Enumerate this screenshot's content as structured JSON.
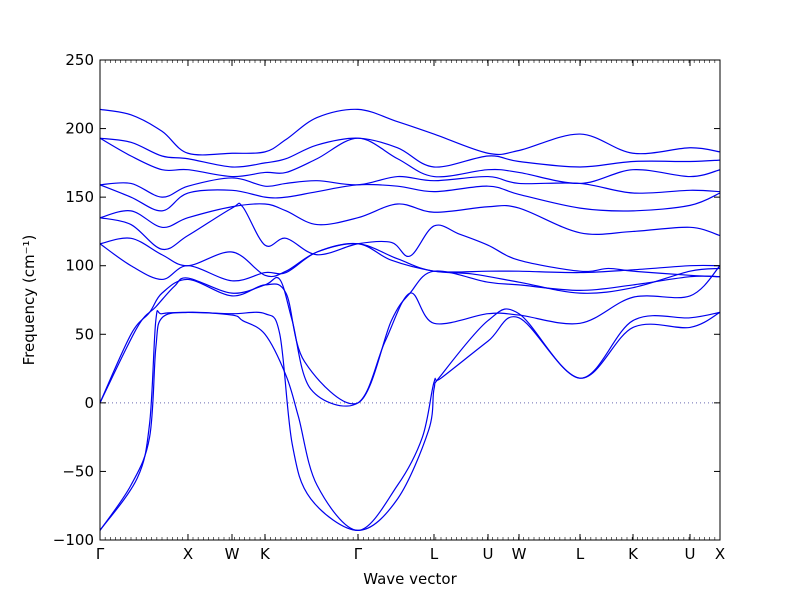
{
  "chart_data": {
    "type": "line",
    "xlabel": "Wave vector",
    "ylabel": "Frequency (cm⁻¹)",
    "ylim": [
      -100,
      250
    ],
    "yticks": [
      -100,
      -50,
      0,
      50,
      100,
      150,
      200,
      250
    ],
    "grid": false,
    "legend": "none",
    "zero_line": true,
    "line_color": "#0000ee",
    "zero_line_color": "#6a6ab0",
    "xlim": [
      0,
      1
    ],
    "x_ticks": [
      {
        "label": "Γ",
        "pos": 0.0
      },
      {
        "label": "X",
        "pos": 0.1419
      },
      {
        "label": "W",
        "pos": 0.2129
      },
      {
        "label": "K",
        "pos": 0.2661
      },
      {
        "label": "Γ",
        "pos": 0.4161
      },
      {
        "label": "L",
        "pos": 0.5387
      },
      {
        "label": "U",
        "pos": 0.6258
      },
      {
        "label": "W",
        "pos": 0.6758
      },
      {
        "label": "L",
        "pos": 0.7742
      },
      {
        "label": "K",
        "pos": 0.8597
      },
      {
        "label": "U",
        "pos": 0.9516
      },
      {
        "label": "X",
        "pos": 1.0
      }
    ],
    "series": [
      {
        "x": [
          0,
          0.05,
          0.08,
          0.09,
          0.1,
          0.1419,
          0.2129,
          0.23,
          0.2661,
          0.3,
          0.32,
          0.35,
          0.4161,
          0.48,
          0.52,
          0.5387,
          0.55,
          0.6258,
          0.6758,
          0.7742,
          0.8597,
          0.9516,
          1.0
        ],
        "y": [
          -93,
          -60,
          -25,
          40,
          62,
          66,
          64,
          60,
          50,
          20,
          -10,
          -60,
          -93,
          -60,
          -25,
          15,
          18,
          45,
          62,
          18,
          55,
          55,
          66
        ]
      },
      {
        "x": [
          0,
          0.06,
          0.08,
          0.09,
          0.1,
          0.1419,
          0.2129,
          0.2661,
          0.29,
          0.31,
          0.34,
          0.4161,
          0.48,
          0.53,
          0.5387,
          0.55,
          0.6258,
          0.6758,
          0.7742,
          0.8597,
          0.9516,
          1.0
        ],
        "y": [
          -93,
          -55,
          -15,
          60,
          65,
          66,
          65,
          65,
          50,
          -30,
          -70,
          -93,
          -70,
          -20,
          10,
          20,
          60,
          65,
          18,
          60,
          62,
          66
        ]
      },
      {
        "x": [
          0,
          0.05,
          0.08,
          0.1,
          0.1419,
          0.2129,
          0.2661,
          0.3,
          0.33,
          0.4161,
          0.47,
          0.5,
          0.5387,
          0.6258,
          0.6758,
          0.7742,
          0.8597,
          0.9516,
          1.0
        ],
        "y": [
          0,
          50,
          66,
          80,
          90,
          78,
          86,
          80,
          30,
          0,
          60,
          80,
          96,
          88,
          86,
          82,
          86,
          92,
          92
        ]
      },
      {
        "x": [
          0,
          0.06,
          0.09,
          0.12,
          0.1419,
          0.2129,
          0.2661,
          0.29,
          0.31,
          0.34,
          0.4161,
          0.46,
          0.5,
          0.5387,
          0.6258,
          0.6758,
          0.7742,
          0.8597,
          0.9516,
          1.0
        ],
        "y": [
          0,
          55,
          70,
          85,
          91,
          80,
          86,
          90,
          60,
          10,
          0,
          45,
          80,
          58,
          65,
          64,
          58,
          77,
          78,
          100
        ]
      },
      {
        "x": [
          0,
          0.05,
          0.1,
          0.1419,
          0.2129,
          0.2661,
          0.3,
          0.35,
          0.4161,
          0.47,
          0.5387,
          0.6,
          0.6758,
          0.7742,
          0.8597,
          0.9516,
          1.0
        ],
        "y": [
          116,
          100,
          90,
          100,
          89,
          95,
          95,
          110,
          116,
          104,
          96,
          94,
          88,
          80,
          84,
          96,
          98
        ]
      },
      {
        "x": [
          0,
          0.05,
          0.1,
          0.1419,
          0.2129,
          0.2661,
          0.3,
          0.35,
          0.4161,
          0.48,
          0.5387,
          0.6258,
          0.6758,
          0.7742,
          0.8597,
          0.9516,
          1.0
        ],
        "y": [
          116,
          120,
          108,
          100,
          110,
          93,
          96,
          110,
          116,
          105,
          96,
          96,
          96,
          95,
          97,
          100,
          100
        ]
      },
      {
        "x": [
          0,
          0.05,
          0.1,
          0.1419,
          0.2129,
          0.23,
          0.2661,
          0.3,
          0.35,
          0.4161,
          0.47,
          0.5,
          0.5387,
          0.58,
          0.6258,
          0.6758,
          0.7742,
          0.82,
          0.8597,
          0.9516,
          1.0
        ],
        "y": [
          135,
          130,
          112,
          122,
          142,
          143,
          115,
          120,
          108,
          116,
          117,
          107,
          129,
          123,
          115,
          104,
          96,
          98,
          96,
          93,
          92
        ]
      },
      {
        "x": [
          0,
          0.05,
          0.1,
          0.1419,
          0.2129,
          0.2661,
          0.3,
          0.35,
          0.4161,
          0.48,
          0.5387,
          0.6258,
          0.6758,
          0.7742,
          0.8597,
          0.9516,
          1.0
        ],
        "y": [
          135,
          140,
          128,
          135,
          143,
          145,
          140,
          130,
          135,
          145,
          139,
          143,
          142,
          124,
          125,
          128,
          122
        ]
      },
      {
        "x": [
          0,
          0.05,
          0.1,
          0.1419,
          0.2129,
          0.2661,
          0.3,
          0.35,
          0.4161,
          0.48,
          0.5387,
          0.6258,
          0.6758,
          0.7742,
          0.8597,
          0.9516,
          1.0
        ],
        "y": [
          159,
          150,
          140,
          153,
          155,
          150,
          150,
          154,
          159,
          158,
          154,
          158,
          152,
          142,
          140,
          144,
          153
        ]
      },
      {
        "x": [
          0,
          0.05,
          0.1,
          0.1419,
          0.2129,
          0.2661,
          0.3,
          0.35,
          0.4161,
          0.48,
          0.5387,
          0.6258,
          0.6758,
          0.7742,
          0.8597,
          0.9516,
          1.0
        ],
        "y": [
          159,
          160,
          150,
          158,
          164,
          158,
          160,
          162,
          159,
          165,
          162,
          165,
          160,
          160,
          153,
          155,
          154
        ]
      },
      {
        "x": [
          0,
          0.05,
          0.1,
          0.1419,
          0.2129,
          0.2661,
          0.3,
          0.35,
          0.4161,
          0.48,
          0.5387,
          0.6258,
          0.6758,
          0.7742,
          0.8597,
          0.9516,
          1.0
        ],
        "y": [
          193,
          180,
          170,
          170,
          165,
          168,
          168,
          178,
          193,
          178,
          165,
          170,
          168,
          160,
          170,
          165,
          170
        ]
      },
      {
        "x": [
          0,
          0.05,
          0.1,
          0.1419,
          0.2129,
          0.2661,
          0.3,
          0.35,
          0.4161,
          0.48,
          0.5387,
          0.6258,
          0.6758,
          0.7742,
          0.8597,
          0.9516,
          1.0
        ],
        "y": [
          193,
          190,
          180,
          178,
          172,
          175,
          178,
          188,
          193,
          186,
          172,
          180,
          176,
          172,
          176,
          176,
          177
        ]
      },
      {
        "x": [
          0,
          0.05,
          0.1,
          0.1419,
          0.2129,
          0.2661,
          0.3,
          0.35,
          0.4161,
          0.48,
          0.5387,
          0.6258,
          0.6758,
          0.7742,
          0.8597,
          0.9516,
          1.0
        ],
        "y": [
          214,
          210,
          198,
          182,
          182,
          183,
          192,
          208,
          214,
          205,
          196,
          182,
          184,
          196,
          182,
          186,
          183
        ]
      }
    ]
  }
}
